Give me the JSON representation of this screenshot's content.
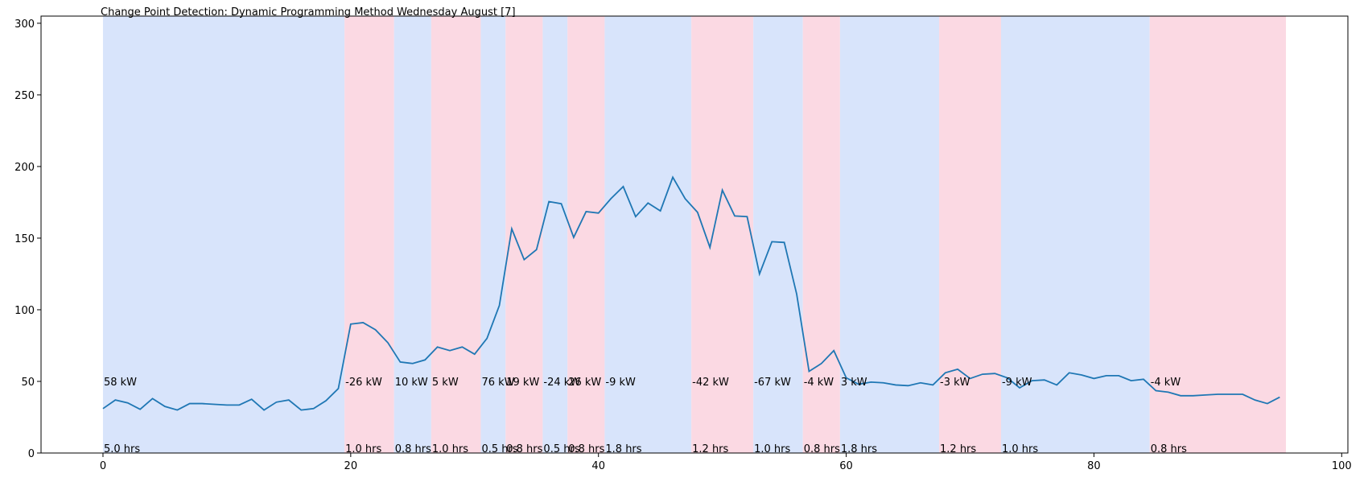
{
  "chart_data": {
    "type": "line",
    "title": "Change Point Detection: Dynamic Programming Method Wednesday August [7]",
    "xlabel": "",
    "ylabel": "",
    "xlim": [
      -5,
      100.5
    ],
    "ylim": [
      0,
      305
    ],
    "x_ticks": [
      0,
      20,
      40,
      60,
      80,
      100
    ],
    "y_ticks": [
      0,
      50,
      100,
      150,
      200,
      250,
      300
    ],
    "grid": false,
    "line_color": "#1f77b4",
    "band_colors": {
      "blue": "#d8e4fb",
      "pink": "#fbd9e3"
    },
    "series": [
      {
        "x": [
          0,
          1,
          2,
          3,
          4,
          5,
          6,
          7,
          8,
          9,
          10,
          11,
          12,
          13,
          14,
          15,
          16,
          17,
          18,
          19,
          20,
          21,
          22,
          23,
          24,
          25,
          26,
          27,
          28,
          29,
          30,
          31,
          32,
          33,
          34,
          35,
          36,
          37,
          38,
          39,
          40,
          41,
          42,
          43,
          44,
          45,
          46,
          47,
          48,
          49,
          50,
          51,
          52,
          53,
          54,
          55,
          56,
          57,
          58,
          59,
          60,
          61,
          62,
          63,
          64,
          65,
          66,
          67,
          68,
          69,
          70,
          71,
          72,
          73,
          74,
          75,
          76,
          77,
          78,
          79,
          80,
          81,
          82,
          83,
          84,
          85,
          86,
          87,
          88,
          89,
          90,
          91,
          92,
          93,
          94,
          95
        ],
        "values": [
          31,
          37,
          35,
          30.5,
          38,
          32.5,
          30,
          34.5,
          34.5,
          34,
          33.5,
          33.5,
          37.5,
          30,
          35.5,
          37,
          30,
          31,
          36.5,
          45,
          90,
          91,
          86,
          77,
          63.5,
          62.5,
          65,
          74,
          71.5,
          74,
          69,
          80,
          103,
          156.5,
          135,
          142,
          175.5,
          174,
          150.5,
          168.5,
          167.5,
          177.5,
          186,
          165,
          174.5,
          169,
          192.5,
          177.5,
          168,
          143.5,
          183.5,
          165.5,
          165,
          125,
          147.5,
          147,
          111,
          57,
          62.5,
          71.5,
          52.5,
          48,
          49.5,
          49,
          47.5,
          47,
          49,
          47.5,
          56,
          58.5,
          52,
          55,
          55.5,
          52.5,
          45.5,
          50.5,
          51,
          47.5,
          56,
          54.5,
          52,
          54,
          54,
          50.5,
          51.5,
          43.5,
          42.5,
          40,
          40,
          40.5,
          41,
          41,
          41,
          37,
          34.5,
          39
        ]
      }
    ],
    "segments": [
      {
        "start": 0,
        "end": 19.5,
        "color": "blue",
        "power": "58 kW",
        "duration": "5.0 hrs"
      },
      {
        "start": 19.5,
        "end": 23.5,
        "color": "pink",
        "power": "-26 kW",
        "duration": "1.0 hrs"
      },
      {
        "start": 23.5,
        "end": 26.5,
        "color": "blue",
        "power": "10 kW",
        "duration": "0.8 hrs"
      },
      {
        "start": 26.5,
        "end": 30.5,
        "color": "pink",
        "power": "5 kW",
        "duration": "1.0 hrs"
      },
      {
        "start": 30.5,
        "end": 32.5,
        "color": "blue",
        "power": "76 kW",
        "duration": "0.5 hrs"
      },
      {
        "start": 32.5,
        "end": 35.5,
        "color": "pink",
        "power": "19 kW",
        "duration": "0.8 hrs"
      },
      {
        "start": 35.5,
        "end": 37.5,
        "color": "blue",
        "power": "-24 kW",
        "duration": "0.5 hrs"
      },
      {
        "start": 37.5,
        "end": 40.5,
        "color": "pink",
        "power": "26 kW",
        "duration": "0.8 hrs"
      },
      {
        "start": 40.5,
        "end": 47.5,
        "color": "blue",
        "power": "-9 kW",
        "duration": "1.8 hrs"
      },
      {
        "start": 47.5,
        "end": 52.5,
        "color": "pink",
        "power": "-42 kW",
        "duration": "1.2 hrs"
      },
      {
        "start": 52.5,
        "end": 56.5,
        "color": "blue",
        "power": "-67 kW",
        "duration": "1.0 hrs"
      },
      {
        "start": 56.5,
        "end": 59.5,
        "color": "pink",
        "power": "-4 kW",
        "duration": "0.8 hrs"
      },
      {
        "start": 59.5,
        "end": 67.5,
        "color": "blue",
        "power": "3 kW",
        "duration": "1.8 hrs"
      },
      {
        "start": 67.5,
        "end": 72.5,
        "color": "pink",
        "power": "-3 kW",
        "duration": "1.2 hrs"
      },
      {
        "start": 72.5,
        "end": 84.5,
        "color": "blue",
        "power": "-9 kW",
        "duration": "1.0 hrs"
      },
      {
        "start": 84.5,
        "end": 95.5,
        "color": "pink",
        "power": "-4 kW",
        "duration": "0.8 hrs"
      }
    ]
  }
}
